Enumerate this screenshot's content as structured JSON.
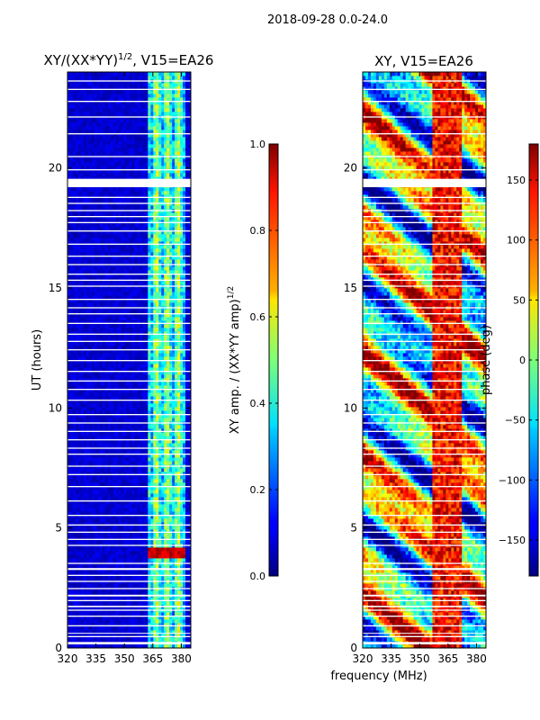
{
  "suptitle": "2018-09-28 0.0-24.0",
  "xlabel_shared": "frequency (MHz)",
  "chart_data": [
    {
      "type": "heatmap",
      "title_main": "XY/(XX*YY)",
      "title_exp": "1/2",
      "title_tail": ", V15=EA26",
      "ylabel": "UT (hours)",
      "xlim": [
        320,
        385
      ],
      "xticks": [
        320,
        335,
        350,
        365,
        380
      ],
      "ylim": [
        0,
        24
      ],
      "yticks": [
        0,
        5,
        10,
        15,
        20
      ],
      "colorbar": {
        "label_main": "XY amp. / (XX*YY amp)",
        "label_exp": "1/2",
        "range": [
          0.0,
          1.0
        ],
        "ticks": [
          0.0,
          0.2,
          0.4,
          0.6,
          0.8,
          1.0
        ],
        "tick_labels": [
          "0.0",
          "0.2",
          "0.4",
          "0.6",
          "0.8",
          "1.0"
        ]
      },
      "features": {
        "active_band_mhz": [
          363,
          382
        ],
        "bright_event_hours": [
          3.7,
          4.2
        ]
      }
    },
    {
      "type": "heatmap",
      "title_main": "XY, V15=EA26",
      "xlim": [
        320,
        385
      ],
      "xticks": [
        320,
        335,
        350,
        365,
        380
      ],
      "ylim": [
        0,
        24
      ],
      "yticks": [
        0,
        5,
        10,
        15,
        20
      ],
      "colorbar": {
        "label_main": "phase (deg)",
        "range": [
          -180,
          180
        ],
        "ticks": [
          -150,
          -100,
          -50,
          0,
          50,
          100,
          150
        ],
        "tick_labels": [
          "−150",
          "−100",
          "−50",
          "0",
          "50",
          "100",
          "150"
        ]
      }
    }
  ],
  "flagged_hours": [
    [
      0.15,
      0.25
    ],
    [
      0.45,
      0.5
    ],
    [
      0.6,
      0.63
    ],
    [
      0.9,
      0.95
    ],
    [
      1.3,
      1.35
    ],
    [
      1.55,
      1.6
    ],
    [
      1.7,
      1.76
    ],
    [
      1.95,
      2.0
    ],
    [
      2.15,
      2.22
    ],
    [
      2.45,
      2.5
    ],
    [
      2.75,
      2.8
    ],
    [
      3.0,
      3.05
    ],
    [
      3.25,
      3.33
    ],
    [
      3.5,
      3.55
    ],
    [
      4.25,
      4.3
    ],
    [
      4.5,
      4.55
    ],
    [
      4.8,
      4.85
    ],
    [
      5.1,
      5.15
    ],
    [
      5.5,
      5.55
    ],
    [
      6.1,
      6.15
    ],
    [
      6.7,
      6.75
    ],
    [
      7.2,
      7.25
    ],
    [
      7.55,
      7.6
    ],
    [
      8.05,
      8.1
    ],
    [
      8.3,
      8.35
    ],
    [
      8.65,
      8.7
    ],
    [
      9.0,
      9.05
    ],
    [
      9.35,
      9.4
    ],
    [
      9.7,
      9.75
    ],
    [
      10.3,
      10.35
    ],
    [
      10.75,
      10.8
    ],
    [
      11.1,
      11.15
    ],
    [
      11.5,
      11.55
    ],
    [
      11.95,
      12.0
    ],
    [
      12.4,
      12.45
    ],
    [
      12.75,
      12.8
    ],
    [
      13.05,
      13.1
    ],
    [
      13.5,
      13.55
    ],
    [
      13.9,
      13.95
    ],
    [
      14.15,
      14.2
    ],
    [
      14.5,
      14.55
    ],
    [
      15.05,
      15.1
    ],
    [
      15.3,
      15.35
    ],
    [
      15.55,
      15.6
    ],
    [
      15.95,
      16.0
    ],
    [
      16.3,
      16.35
    ],
    [
      16.8,
      16.85
    ],
    [
      17.35,
      17.4
    ],
    [
      17.7,
      17.75
    ],
    [
      17.95,
      18.0
    ],
    [
      18.2,
      18.25
    ],
    [
      18.5,
      18.55
    ],
    [
      18.75,
      18.8
    ],
    [
      19.2,
      19.55
    ],
    [
      19.9,
      19.95
    ],
    [
      20.45,
      20.5
    ],
    [
      21.4,
      21.45
    ],
    [
      22.1,
      22.15
    ],
    [
      22.75,
      22.8
    ],
    [
      23.25,
      23.3
    ],
    [
      23.6,
      23.65
    ]
  ]
}
